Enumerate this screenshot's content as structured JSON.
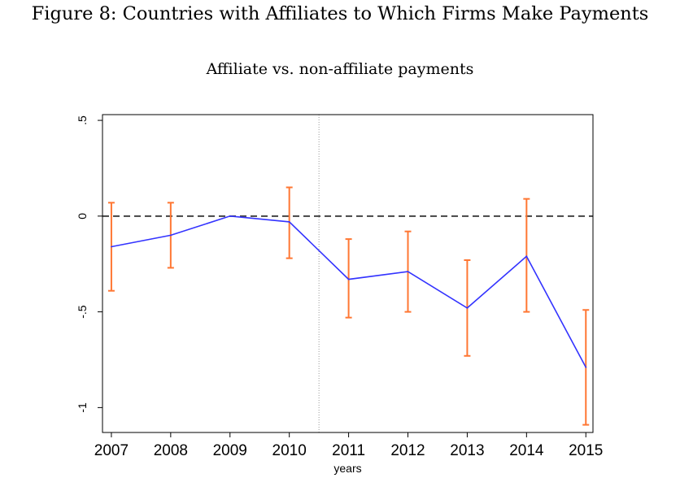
{
  "figure_title": "Figure 8: Countries with Affiliates to Which Firms Make Payments",
  "chart_data": {
    "type": "line",
    "title": "Affiliate vs. non-affiliate payments",
    "xlabel": "years",
    "ylabel": "",
    "x": [
      2007,
      2008,
      2009,
      2010,
      2011,
      2012,
      2013,
      2014,
      2015
    ],
    "x_tick_labels": [
      "2007",
      "2008",
      "2009",
      "2010",
      "2011",
      "2012",
      "2013",
      "2014",
      "2015"
    ],
    "y_ticks": [
      0.5,
      0,
      -0.5,
      -1
    ],
    "y_tick_labels": [
      ".5",
      "0",
      "-.5",
      "-1"
    ],
    "ylim": [
      -1.13,
      0.53
    ],
    "xlim": [
      2006.85,
      2015.12
    ],
    "series": [
      {
        "values": [
          -0.16,
          -0.1,
          0.0,
          -0.03,
          -0.33,
          -0.29,
          -0.48,
          -0.21,
          -0.79
        ],
        "ci_lower": [
          -0.39,
          -0.27,
          0.0,
          -0.22,
          -0.53,
          -0.5,
          -0.73,
          -0.5,
          -1.09
        ],
        "ci_upper": [
          0.07,
          0.07,
          0.0,
          0.15,
          -0.12,
          -0.08,
          -0.23,
          0.09,
          -0.49
        ]
      }
    ],
    "reference_hline": 0,
    "reference_vline": 2010.5,
    "grid": false,
    "colors": {
      "line": "#3333ff",
      "error_bars": "#ff7733",
      "zero_line": "#444444",
      "vline": "#999999"
    }
  }
}
